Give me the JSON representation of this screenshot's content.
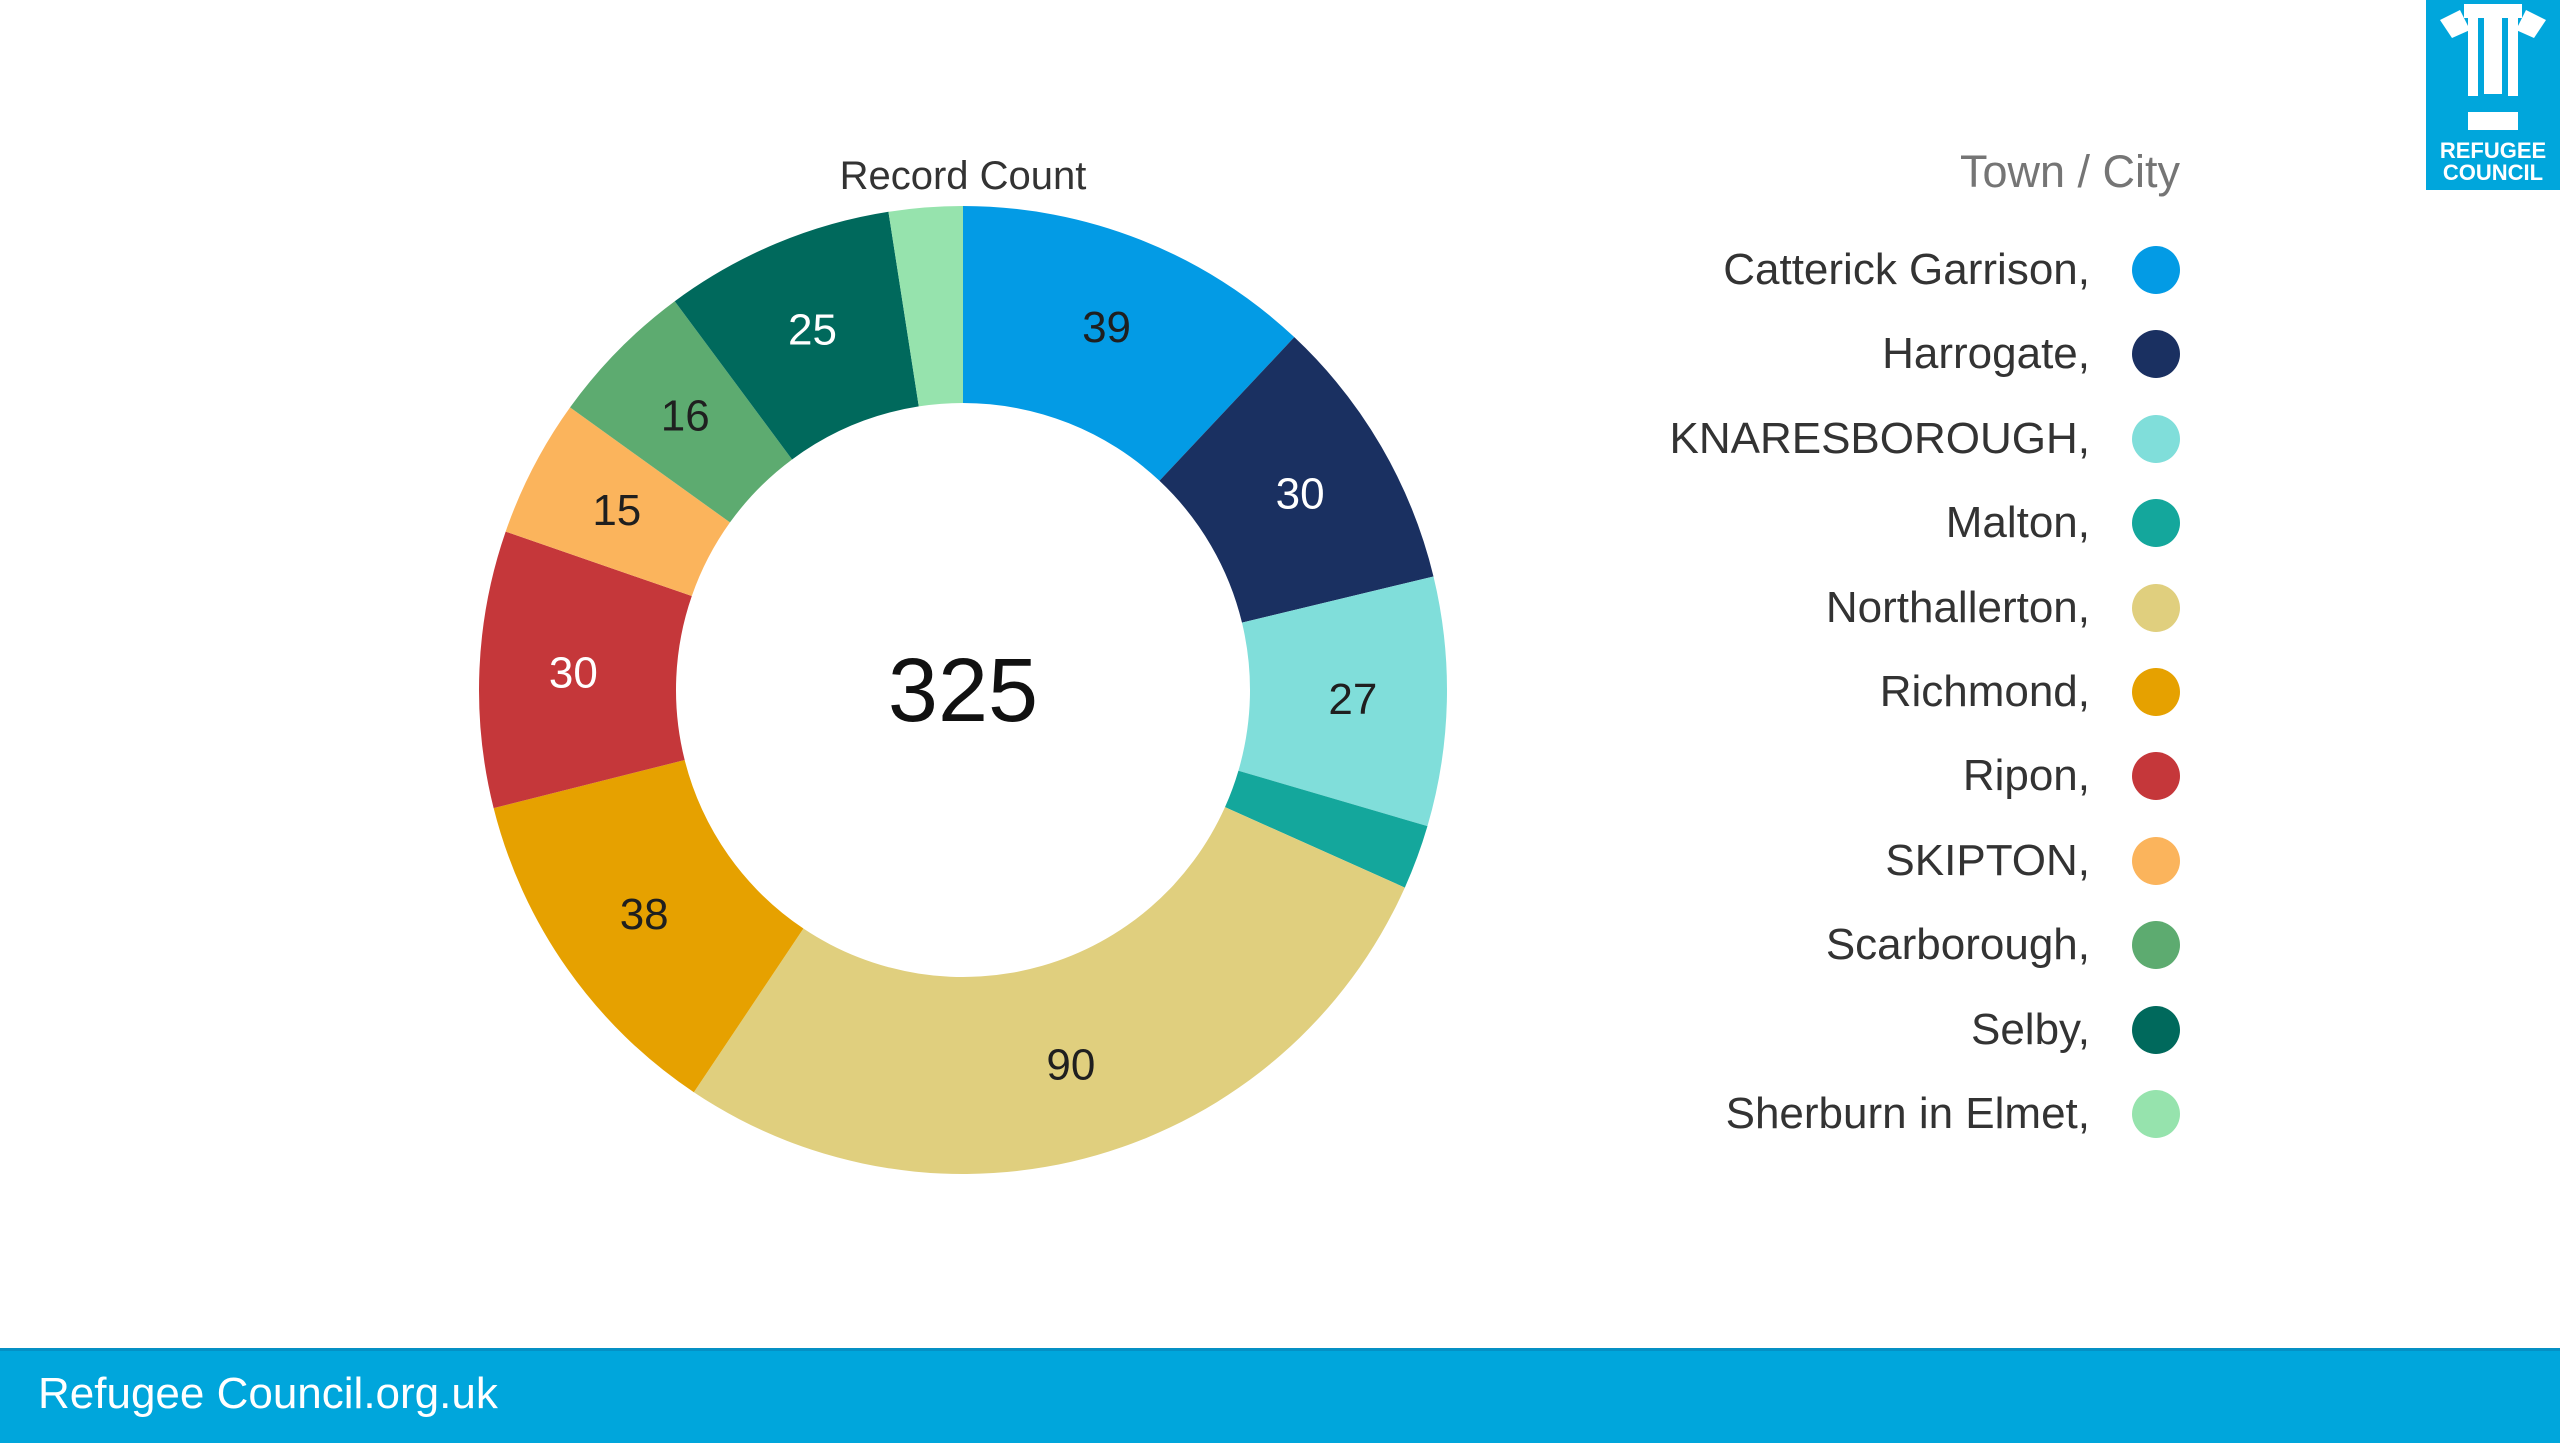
{
  "chart_data": {
    "type": "pie",
    "donut": true,
    "title": "Record Count",
    "center_label": "325",
    "legend_title": "Town / City",
    "legend_position": "right",
    "categories": [
      "Catterick Garrison,",
      "Harrogate,",
      "KNARESBOROUGH,",
      "Malton,",
      "Northallerton,",
      "Richmond,",
      "Ripon,",
      "SKIPTON,",
      "Scarborough,",
      "Selby,",
      "Sherburn in Elmet,"
    ],
    "values": [
      39,
      30,
      27,
      7,
      90,
      38,
      30,
      15,
      16,
      25,
      8
    ],
    "value_labels": [
      "39",
      "30",
      "27",
      "",
      "90",
      "38",
      "30",
      "15",
      "16",
      "25",
      ""
    ],
    "colors": [
      "#039be5",
      "#1a3061",
      "#80deda",
      "#14a79c",
      "#e0cf7e",
      "#e6a100",
      "#c5373a",
      "#fbb45c",
      "#5dab70",
      "#00695c",
      "#96e3ad"
    ],
    "label_colors": [
      "#1f1f1f",
      "#ffffff",
      "#1f1f1f",
      "#1f1f1f",
      "#1f1f1f",
      "#1f1f1f",
      "#ffffff",
      "#1f1f1f",
      "#1f1f1f",
      "#ffffff",
      "#1f1f1f"
    ]
  },
  "logo": {
    "line1": "REFUGEE",
    "line2": "COUNCIL"
  },
  "footer": {
    "text": "Refugee Council.org.uk"
  }
}
